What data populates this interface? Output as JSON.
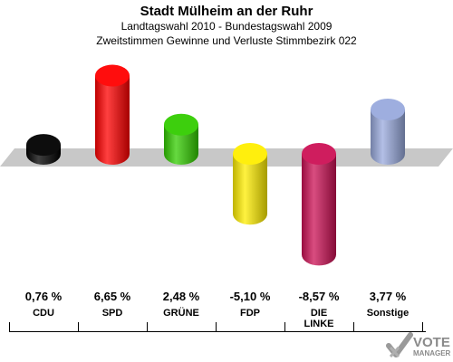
{
  "header": {
    "title": "Stadt Mülheim an der Ruhr",
    "subtitle1": "Landtagswahl 2010 - Bundestagswahl 2009",
    "subtitle2": "Zweitstimmen Gewinne und Verluste Stimmbezirk 022"
  },
  "chart_data": {
    "type": "bar",
    "categories": [
      "CDU",
      "SPD",
      "GRÜNE",
      "FDP",
      "DIE LINKE",
      "Sonstige"
    ],
    "category_lines": [
      [
        "CDU"
      ],
      [
        "SPD"
      ],
      [
        "GRÜNE"
      ],
      [
        "FDP"
      ],
      [
        "DIE",
        "LINKE"
      ],
      [
        "Sonstige"
      ]
    ],
    "values": [
      0.76,
      6.65,
      2.48,
      -5.1,
      -8.57,
      3.77
    ],
    "value_labels": [
      "0,76 %",
      "6,65 %",
      "2,48 %",
      "-5,10 %",
      "-8,57 %",
      "3,77 %"
    ],
    "colors": [
      "#000000",
      "#ff0000",
      "#33cc00",
      "#ffee00",
      "#cc1155",
      "#99aadd"
    ],
    "ylim": [
      -8.57,
      6.65
    ]
  },
  "logo": {
    "line1": "VOTE",
    "line2": "MANAGER"
  }
}
